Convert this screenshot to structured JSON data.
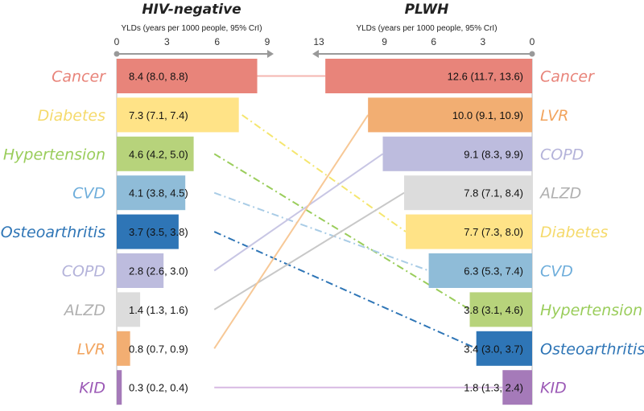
{
  "chart_data": {
    "type": "bar",
    "panels": [
      {
        "title": "HIV-negative",
        "xlabel": "YLDs (years per 1000 people, 95% CrI)",
        "xlim": [
          0,
          9
        ],
        "ticks": [
          0,
          3,
          6,
          9
        ],
        "direction": "left-to-right",
        "bars": [
          {
            "category": "Cancer",
            "value": 8.4,
            "label": "8.4 (8.0, 8.8)",
            "color": "#E8847A"
          },
          {
            "category": "Diabetes",
            "value": 7.3,
            "label": "7.3 (7.1, 7.4)",
            "color": "#FFE387"
          },
          {
            "category": "Hypertension",
            "value": 4.6,
            "label": "4.6 (4.2, 5.0)",
            "color": "#B7D37B"
          },
          {
            "category": "CVD",
            "value": 4.1,
            "label": "4.1 (3.8, 4.5)",
            "color": "#8FBCD8"
          },
          {
            "category": "Osteoarthritis",
            "value": 3.7,
            "label": "3.7 (3.5, 3.8)",
            "color": "#2E75B6"
          },
          {
            "category": "COPD",
            "value": 2.8,
            "label": "2.8 (2.6, 3.0)",
            "color": "#BDBCDE"
          },
          {
            "category": "ALZD",
            "value": 1.4,
            "label": "1.4 (1.3, 1.6)",
            "color": "#DCDCDC"
          },
          {
            "category": "LVR",
            "value": 0.8,
            "label": "0.8 (0.7, 0.9)",
            "color": "#F2AE72"
          },
          {
            "category": "KID",
            "value": 0.3,
            "label": "0.3 (0.2, 0.4)",
            "color": "#A57AB9"
          }
        ]
      },
      {
        "title": "PLWH",
        "xlabel": "YLDs (years per 1000 people, 95% CrI)",
        "xlim": [
          0,
          13
        ],
        "ticks": [
          13,
          9,
          6,
          3,
          0
        ],
        "direction": "right-to-left",
        "bars": [
          {
            "category": "Cancer",
            "value": 12.6,
            "label": "12.6 (11.7, 13.6)",
            "color": "#E8847A"
          },
          {
            "category": "LVR",
            "value": 10.0,
            "label": "10.0 (9.1, 10.9)",
            "color": "#F2AE72"
          },
          {
            "category": "COPD",
            "value": 9.1,
            "label": "9.1 (8.3, 9.9)",
            "color": "#BDBCDE"
          },
          {
            "category": "ALZD",
            "value": 7.8,
            "label": "7.8 (7.1, 8.4)",
            "color": "#DCDCDC"
          },
          {
            "category": "Diabetes",
            "value": 7.7,
            "label": "7.7 (7.3, 8.0)",
            "color": "#FFE387"
          },
          {
            "category": "CVD",
            "value": 6.3,
            "label": "6.3 (5.3, 7.4)",
            "color": "#8FBCD8"
          },
          {
            "category": "Hypertension",
            "value": 3.8,
            "label": "3.8 (3.1, 4.6)",
            "color": "#B7D37B"
          },
          {
            "category": "Osteoarthritis",
            "value": 3.4,
            "label": "3.4 (3.0, 3.7)",
            "color": "#2E75B6"
          },
          {
            "category": "KID",
            "value": 1.8,
            "label": "1.8 (1.3, 2.4)",
            "color": "#A57AB9"
          }
        ]
      }
    ],
    "connectors": [
      {
        "category": "Cancer",
        "style": "solid",
        "color": "#F4B6B0"
      },
      {
        "category": "Diabetes",
        "style": "dash-dot",
        "color": "#F5E66F"
      },
      {
        "category": "Hypertension",
        "style": "dash-dot",
        "color": "#9ACD5B"
      },
      {
        "category": "CVD",
        "style": "dash-dot",
        "color": "#A9CCE6"
      },
      {
        "category": "Osteoarthritis",
        "style": "dash-dot",
        "color": "#2E75B6"
      },
      {
        "category": "COPD",
        "style": "solid",
        "color": "#C8C6E4"
      },
      {
        "category": "ALZD",
        "style": "solid",
        "color": "#C8C8C8"
      },
      {
        "category": "LVR",
        "style": "solid",
        "color": "#F7C896"
      },
      {
        "category": "KID",
        "style": "solid",
        "color": "#D7B9E3"
      }
    ],
    "category_colors": {
      "Cancer": "#E8847A",
      "Diabetes": "#F5DA6B",
      "Hypertension": "#9ACD5B",
      "CVD": "#6FAEDB",
      "Osteoarthritis": "#2E75B6",
      "COPD": "#B4B3DA",
      "ALZD": "#B0B0B0",
      "LVR": "#F2A45E",
      "KID": "#9B59B6"
    }
  }
}
